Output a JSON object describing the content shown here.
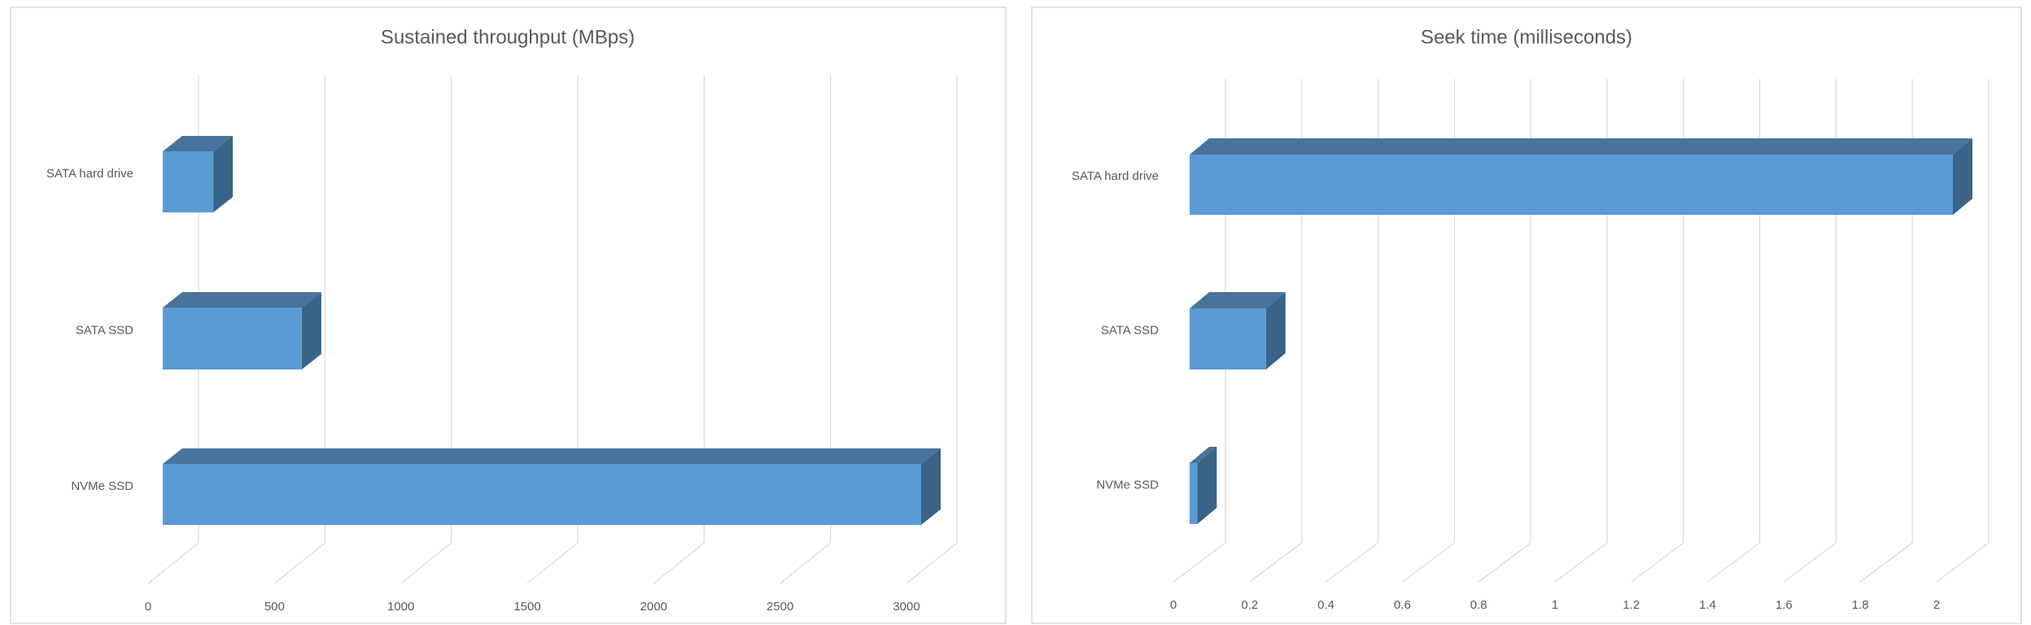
{
  "colors": {
    "front": "#5B9BD5",
    "top": "#46749D",
    "side": "#3A6388",
    "grid": "#D9D9D9",
    "border": "#D9D9D9",
    "text": "#595959"
  },
  "chart_data": [
    {
      "type": "bar",
      "orientation": "horizontal",
      "style": "3d",
      "title": "Sustained throughput (MBps)",
      "xlabel": "",
      "ylabel": "",
      "categories": [
        "SATA hard drive",
        "SATA SSD",
        "NVMe SSD"
      ],
      "values": [
        200,
        550,
        3000
      ],
      "xlim": [
        0,
        3000
      ],
      "ticks": [
        "0",
        "500",
        "1000",
        "1500",
        "2000",
        "2500",
        "3000"
      ],
      "tick_values": [
        0,
        500,
        1000,
        1500,
        2000,
        2500,
        3000
      ],
      "grid": true,
      "legend": "none"
    },
    {
      "type": "bar",
      "orientation": "horizontal",
      "style": "3d",
      "title": "Seek time (milliseconds)",
      "xlabel": "",
      "ylabel": "",
      "categories": [
        "SATA hard drive",
        "SATA SSD",
        "NVMe SSD"
      ],
      "values": [
        2,
        0.2,
        0.02
      ],
      "xlim": [
        0,
        2
      ],
      "ticks": [
        "0",
        "0.2",
        "0.4",
        "0.6",
        "0.8",
        "1",
        "1.2",
        "1.4",
        "1.6",
        "1.8",
        "2"
      ],
      "tick_values": [
        0,
        0.2,
        0.4,
        0.6,
        0.8,
        1,
        1.2,
        1.4,
        1.6,
        1.8,
        2
      ],
      "grid": true,
      "legend": "none"
    }
  ]
}
